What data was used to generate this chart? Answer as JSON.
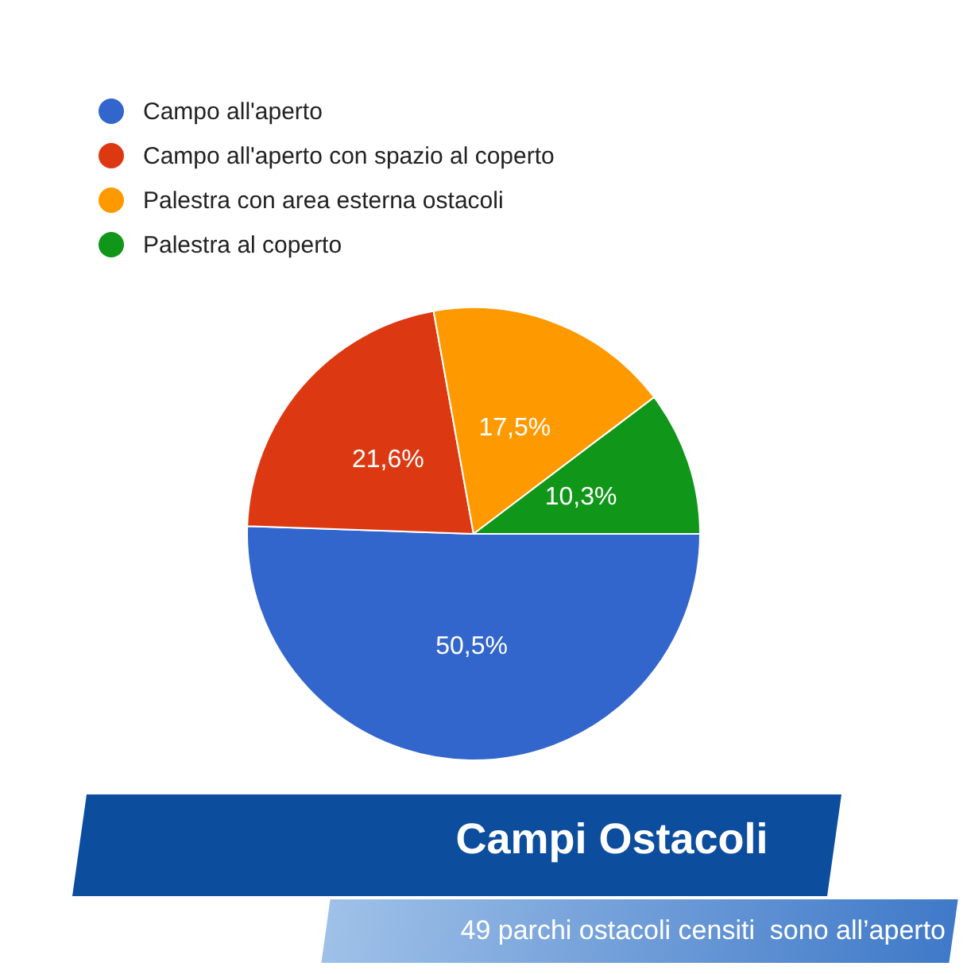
{
  "chart_data": {
    "type": "pie",
    "title": "Campi Ostacoli",
    "annotations": [
      "49 parchi ostacoli censiti  sono all’aperto"
    ],
    "categories": [
      "Campo all'aperto",
      "Campo all'aperto con spazio al coperto",
      "Palestra con area esterna ostacoli",
      "Palestra al coperto"
    ],
    "values": [
      50.5,
      21.6,
      17.5,
      10.3
    ],
    "colors": [
      "#3366cc",
      "#dc3912",
      "#ff9900",
      "#109618"
    ],
    "value_labels": [
      "50,5%",
      "21,6%",
      "17,5%",
      "10,3%"
    ],
    "legend": "top left"
  }
}
